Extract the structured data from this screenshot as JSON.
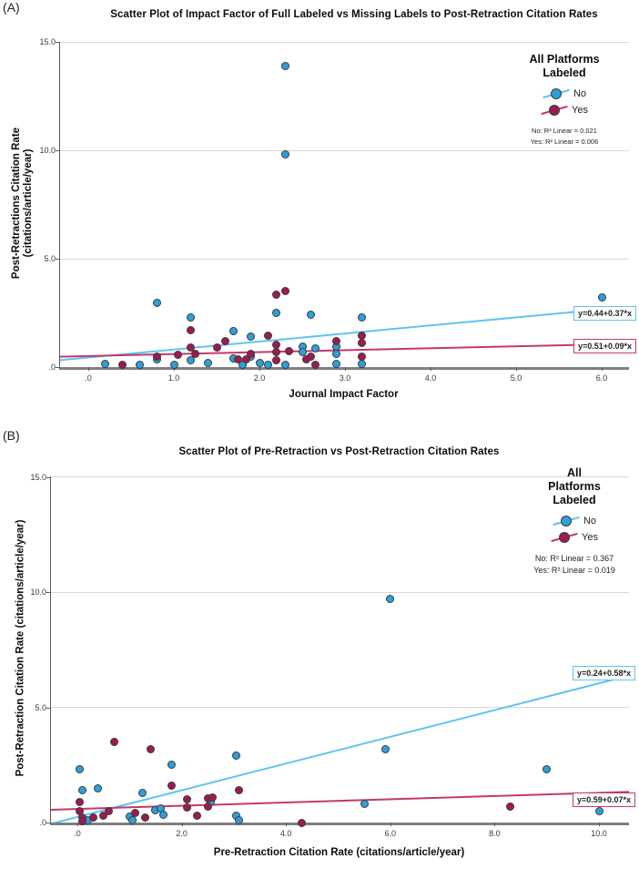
{
  "chart_data": [
    {
      "type": "scatter",
      "panel_label": "(A)",
      "title": "Scatter Plot of Impact Factor of Full Labeled vs Missing Labels to Post-Retraction Citation Rates",
      "xlabel": "Journal Impact Factor",
      "ylabel_lines": [
        "Post-Retractions Citation Rate",
        "(citations/article/year)"
      ],
      "xlim": [
        -0.3,
        6.3
      ],
      "ylim": [
        0,
        15
      ],
      "grid": "horizontal-only",
      "x_axis": {
        "ticks": [
          {
            "v": 0,
            "label": ".0"
          },
          {
            "v": 1,
            "label": "1.0"
          },
          {
            "v": 2,
            "label": "2.0"
          },
          {
            "v": 3,
            "label": "3.0"
          },
          {
            "v": 4,
            "label": "4.0"
          },
          {
            "v": 5,
            "label": "5.0"
          },
          {
            "v": 6,
            "label": "6.0"
          }
        ]
      },
      "y_axis": {
        "ticks": [
          {
            "v": 15,
            "label": "15.0"
          },
          {
            "v": 10,
            "label": "10.0"
          },
          {
            "v": 5,
            "label": "5.0"
          },
          {
            "v": 0,
            "label": ".0"
          }
        ]
      },
      "legend": {
        "position": "top-right-inside",
        "title_lines": [
          "All Platforms",
          "Labeled"
        ],
        "stats": [
          "No: R² Linear = 0.021",
          "Yes: R² Linear = 0.006"
        ]
      },
      "series": [
        {
          "id": "no",
          "name": "No",
          "point_color": "#2d9fdb",
          "line_color": "#5fc3f0",
          "fit": {
            "intercept": 0.44,
            "slope": 0.37,
            "label": "y=0.44+0.37*x"
          },
          "points": [
            [
              0.2,
              0.15
            ],
            [
              0.6,
              0.1
            ],
            [
              0.8,
              2.95
            ],
            [
              0.8,
              0.35
            ],
            [
              1.0,
              0.1
            ],
            [
              1.2,
              2.3
            ],
            [
              1.2,
              0.3
            ],
            [
              1.4,
              0.2
            ],
            [
              1.7,
              1.65
            ],
            [
              1.7,
              0.4
            ],
            [
              1.8,
              0.1
            ],
            [
              1.9,
              1.4
            ],
            [
              1.9,
              0.5
            ],
            [
              2.0,
              0.2
            ],
            [
              2.1,
              0.1
            ],
            [
              2.2,
              2.5
            ],
            [
              2.3,
              13.9
            ],
            [
              2.3,
              9.8
            ],
            [
              2.3,
              0.1
            ],
            [
              2.5,
              0.95
            ],
            [
              2.5,
              0.7
            ],
            [
              2.6,
              2.4
            ],
            [
              2.65,
              0.85
            ],
            [
              2.9,
              0.95
            ],
            [
              2.9,
              0.6
            ],
            [
              2.9,
              0.15
            ],
            [
              3.2,
              2.3
            ],
            [
              3.2,
              0.15
            ],
            [
              6.0,
              3.2
            ]
          ]
        },
        {
          "id": "yes",
          "name": "Yes",
          "point_color": "#9c1a52",
          "line_color": "#c23a68",
          "fit": {
            "intercept": 0.51,
            "slope": 0.09,
            "label": "y=0.51+0.09*x"
          },
          "points": [
            [
              0.4,
              0.1
            ],
            [
              0.8,
              0.5
            ],
            [
              1.05,
              0.55
            ],
            [
              1.2,
              1.7
            ],
            [
              1.2,
              0.9
            ],
            [
              1.25,
              0.6
            ],
            [
              1.5,
              0.9
            ],
            [
              1.6,
              1.2
            ],
            [
              1.75,
              0.35
            ],
            [
              1.85,
              0.35
            ],
            [
              1.9,
              0.6
            ],
            [
              2.1,
              1.45
            ],
            [
              2.2,
              3.35
            ],
            [
              2.2,
              1.05
            ],
            [
              2.2,
              0.7
            ],
            [
              2.2,
              0.3
            ],
            [
              2.3,
              3.5
            ],
            [
              2.35,
              0.75
            ],
            [
              2.55,
              0.35
            ],
            [
              2.6,
              0.5
            ],
            [
              2.65,
              0.1
            ],
            [
              2.9,
              1.2
            ],
            [
              3.2,
              1.45
            ],
            [
              3.2,
              1.1
            ],
            [
              3.2,
              0.5
            ]
          ]
        }
      ]
    },
    {
      "type": "scatter",
      "panel_label": "(B)",
      "title": "Scatter Plot of Pre-Retraction vs Post-Retraction Citation Rates",
      "xlabel": "Pre-Retraction Citation Rate (citations/article/year)",
      "ylabel_lines": [
        "Post-Retraction Citation Rate (citations/article/year)"
      ],
      "xlim": [
        -0.5,
        10.6
      ],
      "ylim": [
        0,
        15
      ],
      "grid": "horizontal-only",
      "x_axis": {
        "ticks": [
          {
            "v": 0,
            "label": ".0"
          },
          {
            "v": 2,
            "label": "2.0"
          },
          {
            "v": 4,
            "label": "4.0"
          },
          {
            "v": 6,
            "label": "6.0"
          },
          {
            "v": 8,
            "label": "8.0"
          },
          {
            "v": 10,
            "label": "10.0"
          }
        ]
      },
      "y_axis": {
        "ticks": [
          {
            "v": 15,
            "label": "15.0"
          },
          {
            "v": 10,
            "label": "10.0"
          },
          {
            "v": 5,
            "label": "5.0"
          },
          {
            "v": 0,
            "label": ".0"
          }
        ]
      },
      "legend": {
        "position": "top-right-inside",
        "title_lines": [
          "All",
          "Platforms",
          "Labeled"
        ],
        "stats": [
          "No: R² Linear = 0.367",
          "Yes: R² Linear = 0.019"
        ]
      },
      "series": [
        {
          "id": "no",
          "name": "No",
          "point_color": "#2d9fdb",
          "line_color": "#5fc3f0",
          "fit": {
            "intercept": 0.24,
            "slope": 0.58,
            "label": "y=0.24+0.58*x"
          },
          "points": [
            [
              0.05,
              2.3
            ],
            [
              0.1,
              1.4
            ],
            [
              0.2,
              0.1
            ],
            [
              0.4,
              1.5
            ],
            [
              1.0,
              0.25
            ],
            [
              1.05,
              0.1
            ],
            [
              1.25,
              1.3
            ],
            [
              1.5,
              0.55
            ],
            [
              1.6,
              0.6
            ],
            [
              1.65,
              0.35
            ],
            [
              1.8,
              2.5
            ],
            [
              2.55,
              0.9
            ],
            [
              3.05,
              2.9
            ],
            [
              3.05,
              0.3
            ],
            [
              3.1,
              0.1
            ],
            [
              5.5,
              0.8
            ],
            [
              5.9,
              3.2
            ],
            [
              6.0,
              9.7
            ],
            [
              9.0,
              2.3
            ],
            [
              10.0,
              0.5
            ]
          ]
        },
        {
          "id": "yes",
          "name": "Yes",
          "point_color": "#9c1a52",
          "line_color": "#c23a68",
          "fit": {
            "intercept": 0.59,
            "slope": 0.07,
            "label": "y=0.59+0.07*x"
          },
          "points": [
            [
              0.05,
              0.9
            ],
            [
              0.05,
              0.5
            ],
            [
              0.1,
              0.2
            ],
            [
              0.1,
              0.05
            ],
            [
              0.3,
              0.2
            ],
            [
              0.5,
              0.3
            ],
            [
              0.6,
              0.5
            ],
            [
              0.7,
              3.5
            ],
            [
              1.1,
              0.4
            ],
            [
              1.3,
              0.2
            ],
            [
              1.4,
              3.2
            ],
            [
              1.8,
              1.6
            ],
            [
              2.1,
              1.0
            ],
            [
              2.1,
              0.65
            ],
            [
              2.3,
              0.3
            ],
            [
              2.5,
              1.05
            ],
            [
              2.5,
              0.7
            ],
            [
              2.6,
              1.1
            ],
            [
              3.1,
              1.4
            ],
            [
              4.3,
              0.0
            ],
            [
              8.3,
              0.7
            ]
          ]
        }
      ]
    }
  ]
}
